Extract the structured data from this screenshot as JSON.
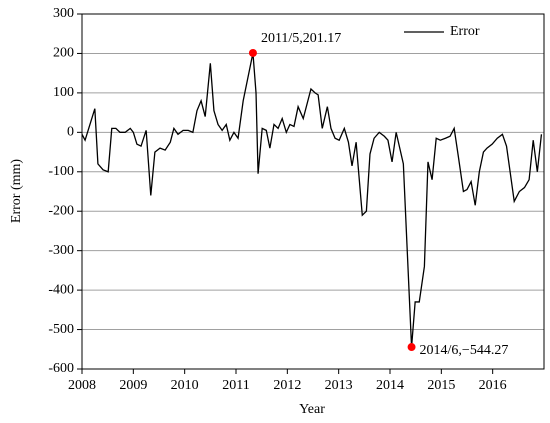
{
  "chart_data": {
    "type": "line",
    "xlabel": "Year",
    "ylabel": "Error (mm)",
    "x": [
      2008.0,
      2008.06,
      2008.25,
      2008.31,
      2008.41,
      2008.51,
      2008.58,
      2008.66,
      2008.74,
      2008.84,
      2008.94,
      2009.0,
      2009.07,
      2009.15,
      2009.25,
      2009.34,
      2009.42,
      2009.52,
      2009.62,
      2009.72,
      2009.79,
      2009.87,
      2009.97,
      2010.07,
      2010.16,
      2010.24,
      2010.32,
      2010.4,
      2010.5,
      2010.57,
      2010.65,
      2010.73,
      2010.81,
      2010.88,
      2010.96,
      2011.04,
      2011.14,
      2011.33,
      2011.39,
      2011.43,
      2011.51,
      2011.59,
      2011.66,
      2011.74,
      2011.82,
      2011.9,
      2011.98,
      2012.05,
      2012.13,
      2012.21,
      2012.31,
      2012.46,
      2012.54,
      2012.6,
      2012.68,
      2012.78,
      2012.85,
      2012.93,
      2013.01,
      2013.11,
      2013.19,
      2013.26,
      2013.34,
      2013.46,
      2013.54,
      2013.61,
      2013.69,
      2013.79,
      2013.89,
      2013.96,
      2014.04,
      2014.12,
      2014.26,
      2014.42,
      2014.49,
      2014.57,
      2014.67,
      2014.74,
      2014.82,
      2014.9,
      2014.98,
      2015.08,
      2015.17,
      2015.25,
      2015.33,
      2015.43,
      2015.5,
      2015.58,
      2015.66,
      2015.74,
      2015.82,
      2015.89,
      2015.99,
      2016.09,
      2016.19,
      2016.27,
      2016.42,
      2016.52,
      2016.62,
      2016.71,
      2016.79,
      2016.87,
      2016.95
    ],
    "series": [
      {
        "name": "Error",
        "color": "#000000",
        "values": [
          -5,
          -20,
          60,
          -80,
          -95,
          -100,
          10,
          10,
          0,
          0,
          10,
          0,
          -30,
          -35,
          5,
          -160,
          -50,
          -40,
          -45,
          -25,
          10,
          -5,
          5,
          5,
          0,
          55,
          80,
          40,
          175,
          55,
          20,
          5,
          20,
          -20,
          0,
          -15,
          80,
          201.17,
          100,
          -105,
          10,
          5,
          -40,
          20,
          10,
          35,
          0,
          20,
          15,
          65,
          35,
          110,
          100,
          95,
          10,
          65,
          10,
          -15,
          -20,
          10,
          -25,
          -85,
          -25,
          -210,
          -200,
          -55,
          -15,
          0,
          -10,
          -20,
          -75,
          0,
          -80,
          -544.27,
          -430,
          -430,
          -340,
          -75,
          -120,
          -15,
          -20,
          -15,
          -10,
          10,
          -60,
          -150,
          -145,
          -125,
          -185,
          -100,
          -50,
          -40,
          -30,
          -15,
          -5,
          -35,
          -175,
          -150,
          -140,
          -120,
          -20,
          -100,
          -5
        ]
      }
    ],
    "annotations": [
      {
        "text": "2011/5,201.17",
        "x": 2011.33,
        "y": 201.17,
        "color": "#ff0000"
      },
      {
        "text": "2014/6,−544.27",
        "x": 2014.42,
        "y": -544.27,
        "color": "#ff0000"
      }
    ],
    "xlim": [
      2008,
      2017
    ],
    "ylim": [
      -600,
      300
    ],
    "xticks": [
      2008,
      2009,
      2010,
      2011,
      2012,
      2013,
      2014,
      2015,
      2016
    ],
    "yticks": [
      -600,
      -500,
      -400,
      -300,
      -200,
      -100,
      0,
      100,
      200,
      300
    ],
    "grid": true,
    "legend": "upper right"
  }
}
